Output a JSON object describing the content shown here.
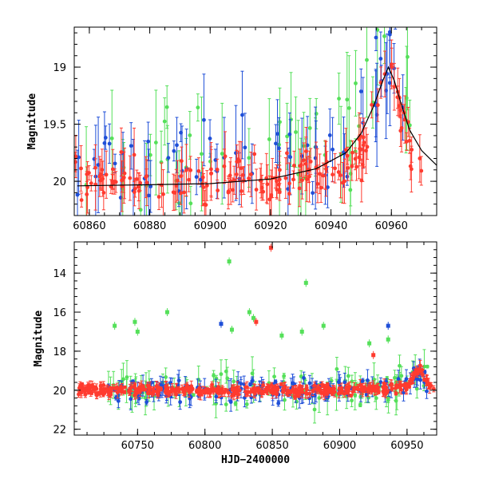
{
  "colors": {
    "blue": "#1f4fd8",
    "green": "#55e05a",
    "red": "#ff3b2f",
    "axis": "#000000"
  },
  "chart_data": [
    {
      "type": "scatter",
      "title": "",
      "xlabel": "",
      "ylabel": "Magnitude",
      "xlim": [
        60855,
        60975
      ],
      "ylim": [
        20.3,
        18.65
      ],
      "y_inverted": true,
      "xticks": [
        60860,
        60880,
        60900,
        60920,
        60940,
        60960
      ],
      "xtick_labels": [
        "60860",
        "60880",
        "60900",
        "60920",
        "60940",
        "60960"
      ],
      "yticks": [
        19,
        19.5,
        20
      ],
      "ytick_labels": [
        "19",
        "19.5",
        "20"
      ],
      "model_curve": {
        "description": "microlensing-like single-peak model",
        "x": [
          60856,
          60880,
          60900,
          60920,
          60935,
          60945,
          60950,
          60954,
          60957,
          60959,
          60961,
          60963,
          60966,
          60970,
          60975
        ],
        "y": [
          20.04,
          20.03,
          20.02,
          19.98,
          19.89,
          19.75,
          19.58,
          19.35,
          19.13,
          19.0,
          19.12,
          19.3,
          19.55,
          19.73,
          19.86
        ]
      },
      "series": [
        {
          "name": "blue",
          "color": "#1f4fd8",
          "n": 70,
          "x_range": [
            60855,
            60968
          ],
          "baseline": 19.85,
          "scatter": 0.45
        },
        {
          "name": "green",
          "color": "#55e05a",
          "n": 55,
          "x_range": [
            60858,
            60968
          ],
          "baseline": 19.75,
          "scatter": 0.5
        },
        {
          "name": "red",
          "color": "#ff3b2f",
          "n": 180,
          "x_range": [
            60855,
            60970
          ],
          "baseline": 20.0,
          "scatter": 0.2
        }
      ]
    },
    {
      "type": "scatter",
      "title": "",
      "xlabel": "HJD−2400000",
      "ylabel": "Magnitude",
      "xlim": [
        60703,
        60972
      ],
      "ylim": [
        22.3,
        12.4
      ],
      "y_inverted": true,
      "xticks": [
        60750,
        60800,
        60850,
        60900,
        60950
      ],
      "xtick_labels": [
        "60750",
        "60800",
        "60850",
        "60900",
        "60950"
      ],
      "yticks": [
        14,
        16,
        18,
        20,
        22
      ],
      "ytick_labels": [
        "14",
        "16",
        "18",
        "20",
        "22"
      ],
      "outliers": [
        {
          "x": 60733,
          "y": 16.7,
          "series": "green"
        },
        {
          "x": 60748,
          "y": 16.5,
          "series": "green"
        },
        {
          "x": 60750,
          "y": 17.0,
          "series": "green"
        },
        {
          "x": 60772,
          "y": 16.0,
          "series": "green"
        },
        {
          "x": 60818,
          "y": 13.4,
          "series": "green"
        },
        {
          "x": 60812,
          "y": 16.6,
          "series": "blue"
        },
        {
          "x": 60820,
          "y": 16.9,
          "series": "green"
        },
        {
          "x": 60833,
          "y": 16.0,
          "series": "green"
        },
        {
          "x": 60836,
          "y": 16.3,
          "series": "green"
        },
        {
          "x": 60838,
          "y": 16.5,
          "series": "red"
        },
        {
          "x": 60849,
          "y": 12.7,
          "series": "red"
        },
        {
          "x": 60857,
          "y": 17.2,
          "series": "green"
        },
        {
          "x": 60875,
          "y": 14.5,
          "series": "green"
        },
        {
          "x": 60888,
          "y": 16.7,
          "series": "green"
        },
        {
          "x": 60872,
          "y": 17.0,
          "series": "green"
        },
        {
          "x": 60922,
          "y": 17.6,
          "series": "green"
        },
        {
          "x": 60936,
          "y": 16.7,
          "series": "blue"
        },
        {
          "x": 60936,
          "y": 17.4,
          "series": "green"
        },
        {
          "x": 60925,
          "y": 18.2,
          "series": "red"
        }
      ],
      "series": [
        {
          "name": "blue",
          "color": "#1f4fd8",
          "n": 160,
          "x_range": [
            60728,
            60968
          ],
          "baseline": 20.0,
          "scatter": 0.55
        },
        {
          "name": "green",
          "color": "#55e05a",
          "n": 120,
          "x_range": [
            60728,
            60968
          ],
          "baseline": 19.9,
          "scatter": 0.9
        },
        {
          "name": "red",
          "color": "#ff3b2f",
          "n": 420,
          "x_range": [
            60706,
            60970
          ],
          "baseline": 20.0,
          "scatter": 0.25
        }
      ]
    }
  ]
}
